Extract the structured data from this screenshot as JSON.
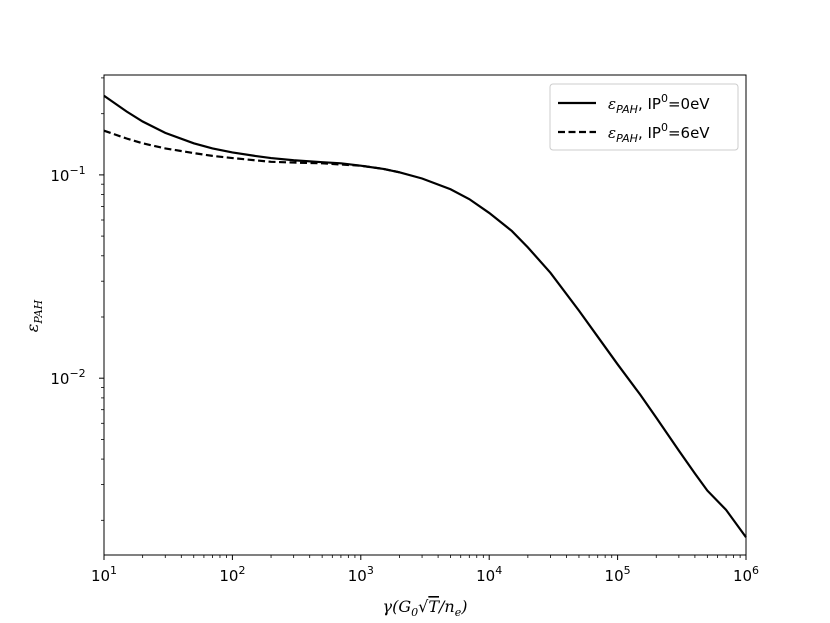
{
  "chart_data": {
    "type": "line",
    "title": "",
    "xlabel": "γ(G₀√T/nₑ)",
    "ylabel": "εPAH",
    "x_scale": "log",
    "y_scale": "log",
    "xlim": [
      10,
      1000000
    ],
    "ylim": [
      0.00135,
      0.31
    ],
    "grid": false,
    "legend_position": "top-right",
    "x_ticks": [
      {
        "value": 10,
        "base": "10",
        "exp": "1"
      },
      {
        "value": 100,
        "base": "10",
        "exp": "2"
      },
      {
        "value": 1000,
        "base": "10",
        "exp": "3"
      },
      {
        "value": 10000,
        "base": "10",
        "exp": "4"
      },
      {
        "value": 100000,
        "base": "10",
        "exp": "5"
      },
      {
        "value": 1000000,
        "base": "10",
        "exp": "6"
      }
    ],
    "y_ticks": [
      {
        "value": 0.1,
        "base": "10",
        "exp": "−1"
      },
      {
        "value": 0.01,
        "base": "10",
        "exp": "−2"
      }
    ],
    "series": [
      {
        "name": "εPAH, IP⁰=0eV",
        "label_symbol": "ε",
        "label_subscript": "PAH",
        "label_rest": ", IP",
        "label_sup": "0",
        "label_tail": "=0eV",
        "style": "solid",
        "color": "#000000",
        "points": [
          [
            10,
            0.245
          ],
          [
            15,
            0.205
          ],
          [
            20,
            0.183
          ],
          [
            30,
            0.161
          ],
          [
            50,
            0.143
          ],
          [
            70,
            0.135
          ],
          [
            100,
            0.129
          ],
          [
            150,
            0.124
          ],
          [
            200,
            0.121
          ],
          [
            300,
            0.118
          ],
          [
            500,
            0.1155
          ],
          [
            700,
            0.114
          ],
          [
            1000,
            0.111
          ],
          [
            1500,
            0.107
          ],
          [
            2000,
            0.103
          ],
          [
            3000,
            0.096
          ],
          [
            5000,
            0.085
          ],
          [
            7000,
            0.076
          ],
          [
            10000,
            0.065
          ],
          [
            15000,
            0.053
          ],
          [
            20000,
            0.044
          ],
          [
            30000,
            0.033
          ],
          [
            50000,
            0.0215
          ],
          [
            70000,
            0.016
          ],
          [
            100000,
            0.0117
          ],
          [
            150000,
            0.0083
          ],
          [
            200000,
            0.0064
          ],
          [
            300000,
            0.0044
          ],
          [
            400000,
            0.0034
          ],
          [
            500000,
            0.0028
          ],
          [
            700000,
            0.00225
          ],
          [
            1000000,
            0.00165
          ]
        ]
      },
      {
        "name": "εPAH, IP⁰=6eV",
        "label_symbol": "ε",
        "label_subscript": "PAH",
        "label_rest": ", IP",
        "label_sup": "0",
        "label_tail": "=6eV",
        "style": "dashed",
        "color": "#000000",
        "points": [
          [
            10,
            0.165
          ],
          [
            15,
            0.151
          ],
          [
            20,
            0.143
          ],
          [
            30,
            0.135
          ],
          [
            50,
            0.128
          ],
          [
            70,
            0.124
          ],
          [
            100,
            0.121
          ],
          [
            150,
            0.118
          ],
          [
            200,
            0.116
          ],
          [
            300,
            0.115
          ],
          [
            500,
            0.114
          ],
          [
            700,
            0.1125
          ],
          [
            1000,
            0.111
          ],
          [
            1500,
            0.107
          ],
          [
            2000,
            0.103
          ]
        ]
      }
    ]
  }
}
